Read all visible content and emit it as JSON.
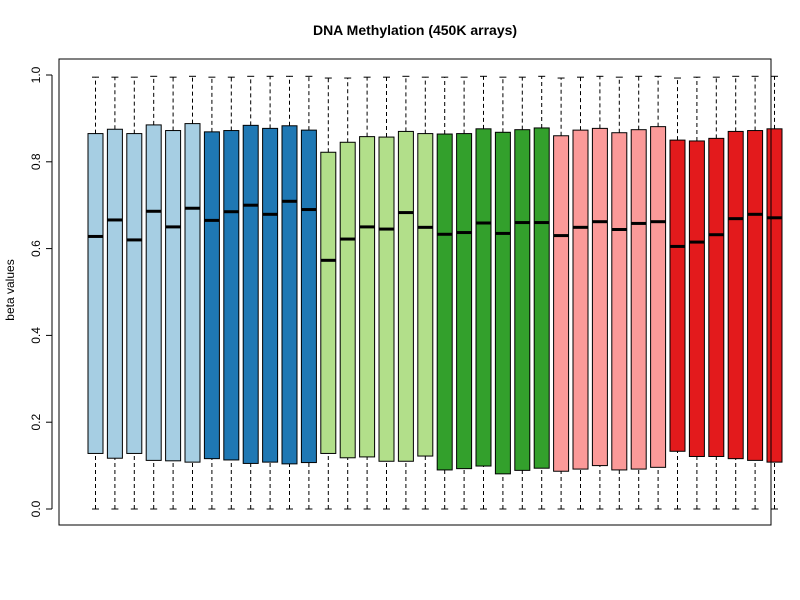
{
  "chart_data": {
    "type": "boxplot",
    "title": "DNA Methylation (450K arrays)",
    "xlabel": "",
    "ylabel": "beta values",
    "ylim": [
      0.0,
      1.0
    ],
    "yticks": [
      "0.0",
      "0.2",
      "0.4",
      "0.6",
      "0.8",
      "1.0"
    ],
    "grid": false,
    "legend": "none",
    "boxes": [
      {
        "color": "#a6cee3",
        "whisker_low": 0.0,
        "q1": 0.128,
        "median": 0.628,
        "q3": 0.865,
        "whisker_high": 0.995
      },
      {
        "color": "#a6cee3",
        "whisker_low": 0.0,
        "q1": 0.117,
        "median": 0.666,
        "q3": 0.875,
        "whisker_high": 0.995
      },
      {
        "color": "#a6cee3",
        "whisker_low": 0.0,
        "q1": 0.128,
        "median": 0.62,
        "q3": 0.865,
        "whisker_high": 0.995
      },
      {
        "color": "#a6cee3",
        "whisker_low": 0.0,
        "q1": 0.112,
        "median": 0.686,
        "q3": 0.885,
        "whisker_high": 0.997
      },
      {
        "color": "#a6cee3",
        "whisker_low": 0.0,
        "q1": 0.111,
        "median": 0.65,
        "q3": 0.872,
        "whisker_high": 0.995
      },
      {
        "color": "#a6cee3",
        "whisker_low": 0.0,
        "q1": 0.108,
        "median": 0.693,
        "q3": 0.888,
        "whisker_high": 0.997
      },
      {
        "color": "#1f78b4",
        "whisker_low": 0.0,
        "q1": 0.116,
        "median": 0.665,
        "q3": 0.869,
        "whisker_high": 0.995
      },
      {
        "color": "#1f78b4",
        "whisker_low": 0.0,
        "q1": 0.113,
        "median": 0.685,
        "q3": 0.872,
        "whisker_high": 0.995
      },
      {
        "color": "#1f78b4",
        "whisker_low": 0.0,
        "q1": 0.105,
        "median": 0.7,
        "q3": 0.884,
        "whisker_high": 0.997
      },
      {
        "color": "#1f78b4",
        "whisker_low": 0.0,
        "q1": 0.108,
        "median": 0.679,
        "q3": 0.877,
        "whisker_high": 0.997
      },
      {
        "color": "#1f78b4",
        "whisker_low": 0.0,
        "q1": 0.104,
        "median": 0.709,
        "q3": 0.883,
        "whisker_high": 0.997
      },
      {
        "color": "#1f78b4",
        "whisker_low": 0.0,
        "q1": 0.107,
        "median": 0.69,
        "q3": 0.873,
        "whisker_high": 0.997
      },
      {
        "color": "#b2df8a",
        "whisker_low": 0.0,
        "q1": 0.128,
        "median": 0.573,
        "q3": 0.822,
        "whisker_high": 0.993
      },
      {
        "color": "#b2df8a",
        "whisker_low": 0.0,
        "q1": 0.118,
        "median": 0.622,
        "q3": 0.845,
        "whisker_high": 0.993
      },
      {
        "color": "#b2df8a",
        "whisker_low": 0.0,
        "q1": 0.12,
        "median": 0.65,
        "q3": 0.858,
        "whisker_high": 0.995
      },
      {
        "color": "#b2df8a",
        "whisker_low": 0.0,
        "q1": 0.11,
        "median": 0.645,
        "q3": 0.857,
        "whisker_high": 0.995
      },
      {
        "color": "#b2df8a",
        "whisker_low": 0.0,
        "q1": 0.11,
        "median": 0.683,
        "q3": 0.87,
        "whisker_high": 0.997
      },
      {
        "color": "#b2df8a",
        "whisker_low": 0.0,
        "q1": 0.122,
        "median": 0.649,
        "q3": 0.865,
        "whisker_high": 0.995
      },
      {
        "color": "#33a02c",
        "whisker_low": 0.0,
        "q1": 0.09,
        "median": 0.633,
        "q3": 0.864,
        "whisker_high": 0.995
      },
      {
        "color": "#33a02c",
        "whisker_low": 0.0,
        "q1": 0.093,
        "median": 0.637,
        "q3": 0.865,
        "whisker_high": 0.995
      },
      {
        "color": "#33a02c",
        "whisker_low": 0.0,
        "q1": 0.099,
        "median": 0.659,
        "q3": 0.876,
        "whisker_high": 0.997
      },
      {
        "color": "#33a02c",
        "whisker_low": 0.0,
        "q1": 0.081,
        "median": 0.635,
        "q3": 0.868,
        "whisker_high": 0.995
      },
      {
        "color": "#33a02c",
        "whisker_low": 0.0,
        "q1": 0.089,
        "median": 0.66,
        "q3": 0.874,
        "whisker_high": 0.995
      },
      {
        "color": "#33a02c",
        "whisker_low": 0.0,
        "q1": 0.094,
        "median": 0.66,
        "q3": 0.878,
        "whisker_high": 0.997
      },
      {
        "color": "#fb9a99",
        "whisker_low": 0.0,
        "q1": 0.087,
        "median": 0.63,
        "q3": 0.86,
        "whisker_high": 0.993
      },
      {
        "color": "#fb9a99",
        "whisker_low": 0.0,
        "q1": 0.092,
        "median": 0.649,
        "q3": 0.873,
        "whisker_high": 0.995
      },
      {
        "color": "#fb9a99",
        "whisker_low": 0.0,
        "q1": 0.1,
        "median": 0.662,
        "q3": 0.877,
        "whisker_high": 0.997
      },
      {
        "color": "#fb9a99",
        "whisker_low": 0.0,
        "q1": 0.09,
        "median": 0.644,
        "q3": 0.867,
        "whisker_high": 0.995
      },
      {
        "color": "#fb9a99",
        "whisker_low": 0.0,
        "q1": 0.092,
        "median": 0.658,
        "q3": 0.874,
        "whisker_high": 0.997
      },
      {
        "color": "#fb9a99",
        "whisker_low": 0.0,
        "q1": 0.096,
        "median": 0.662,
        "q3": 0.881,
        "whisker_high": 0.997
      },
      {
        "color": "#e31a1c",
        "whisker_low": 0.0,
        "q1": 0.133,
        "median": 0.605,
        "q3": 0.85,
        "whisker_high": 0.993
      },
      {
        "color": "#e31a1c",
        "whisker_low": 0.0,
        "q1": 0.121,
        "median": 0.615,
        "q3": 0.848,
        "whisker_high": 0.995
      },
      {
        "color": "#e31a1c",
        "whisker_low": 0.0,
        "q1": 0.121,
        "median": 0.632,
        "q3": 0.854,
        "whisker_high": 0.995
      },
      {
        "color": "#e31a1c",
        "whisker_low": 0.0,
        "q1": 0.116,
        "median": 0.669,
        "q3": 0.87,
        "whisker_high": 0.997
      },
      {
        "color": "#e31a1c",
        "whisker_low": 0.0,
        "q1": 0.112,
        "median": 0.679,
        "q3": 0.872,
        "whisker_high": 0.997
      },
      {
        "color": "#e31a1c",
        "whisker_low": 0.0,
        "q1": 0.108,
        "median": 0.671,
        "q3": 0.876,
        "whisker_high": 0.997
      }
    ]
  }
}
